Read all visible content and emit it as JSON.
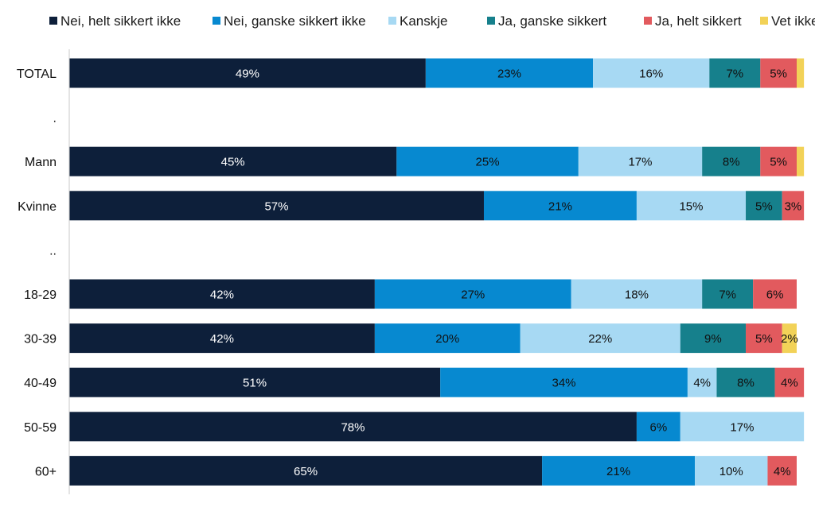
{
  "chart_data": {
    "type": "bar",
    "orientation": "horizontal",
    "stacked": true,
    "title": "",
    "xlabel": "",
    "ylabel": "",
    "legend_position": "top",
    "grid": false,
    "categories": [
      "TOTAL",
      ".",
      "Mann",
      "Kvinne",
      "..",
      "18-29",
      "30-39",
      "40-49",
      "50-59",
      "60+"
    ],
    "series": [
      {
        "name": "Nei, helt sikkert ikke",
        "color": "#0d1f3a",
        "label_color": "#ffffff",
        "values": [
          49,
          null,
          45,
          57,
          null,
          42,
          42,
          51,
          78,
          65
        ]
      },
      {
        "name": "Nei, ganske sikkert ikke",
        "color": "#0789d0",
        "label_color": "#111111",
        "values": [
          23,
          null,
          25,
          21,
          null,
          27,
          20,
          34,
          6,
          21
        ]
      },
      {
        "name": "Kanskje",
        "color": "#a7d9f3",
        "label_color": "#111111",
        "values": [
          16,
          null,
          17,
          15,
          null,
          18,
          22,
          4,
          17,
          10
        ]
      },
      {
        "name": "Ja, ganske sikkert",
        "color": "#16808c",
        "label_color": "#111111",
        "values": [
          7,
          null,
          8,
          5,
          null,
          7,
          9,
          8,
          null,
          null
        ]
      },
      {
        "name": "Ja, helt sikkert",
        "color": "#e25a5e",
        "label_color": "#111111",
        "values": [
          5,
          null,
          5,
          3,
          null,
          6,
          5,
          4,
          null,
          4
        ]
      },
      {
        "name": "Vet ikke",
        "color": "#f2d258",
        "label_color": "#111111",
        "values": [
          1,
          null,
          1,
          null,
          null,
          null,
          2,
          null,
          null,
          null
        ]
      }
    ],
    "data_labels": [
      [
        "49%",
        "23%",
        "16%",
        "7%",
        "5%",
        ""
      ],
      [
        "",
        "",
        "",
        "",
        "",
        ""
      ],
      [
        "45%",
        "25%",
        "17%",
        "8%",
        "5%",
        ""
      ],
      [
        "57%",
        "21%",
        "15%",
        "5%",
        "3%",
        ""
      ],
      [
        "",
        "",
        "",
        "",
        "",
        ""
      ],
      [
        "42%",
        "27%",
        "18%",
        "7%",
        "6%",
        ""
      ],
      [
        "42%",
        "20%",
        "22%",
        "9%",
        "5%",
        "2%"
      ],
      [
        "51%",
        "34%",
        "4%",
        "8%",
        "4%",
        ""
      ],
      [
        "78%",
        "6%",
        "17%",
        "",
        "",
        ""
      ],
      [
        "65%",
        "21%",
        "10%",
        "",
        "4%",
        ""
      ]
    ]
  }
}
